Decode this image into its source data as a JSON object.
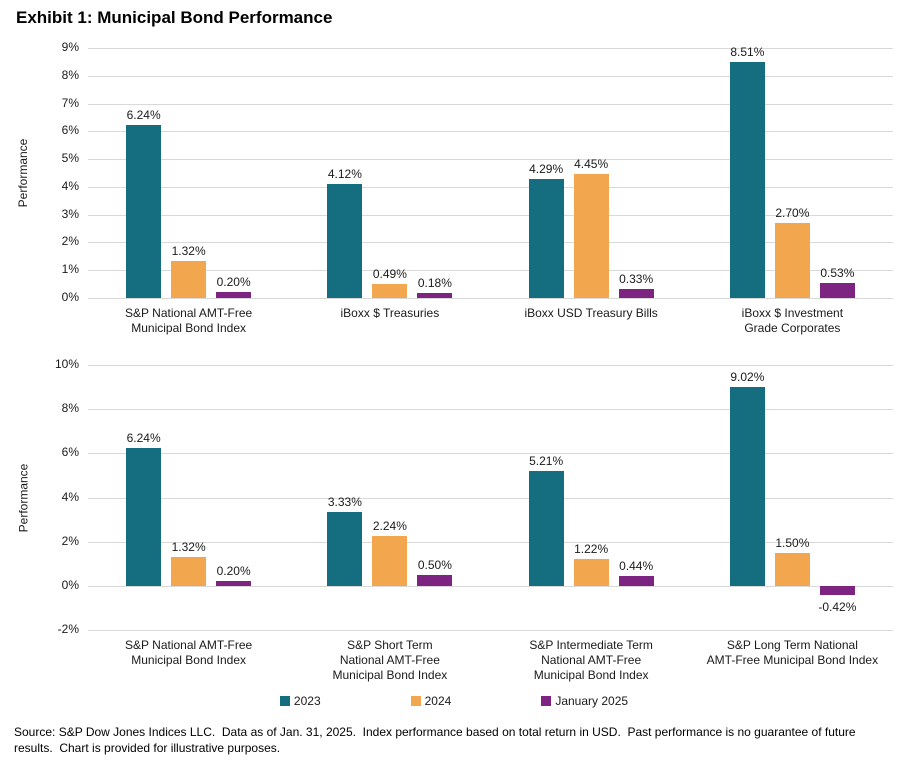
{
  "title": "Exhibit 1: Municipal Bond Performance",
  "legend": [
    {
      "label": "2023",
      "color": "#156e80"
    },
    {
      "label": "2024",
      "color": "#f2a74f"
    },
    {
      "label": "January 2025",
      "color": "#7d2382"
    }
  ],
  "footer": "Source: S&P Dow Jones Indices LLC.  Data as of Jan. 31, 2025.  Index performance based on total return in USD.  Past performance is no guarantee of future results.  Chart is provided for illustrative purposes.",
  "chart_data": [
    {
      "type": "bar",
      "title": "",
      "ylabel": "Performance",
      "ylim": [
        0,
        9
      ],
      "ytick_step": 1,
      "ytick_suffix": "%",
      "grid": true,
      "legend_position": "bottom",
      "value_labels": true,
      "categories": [
        "S&P National AMT-Free\nMunicipal Bond Index",
        "iBoxx $ Treasuries",
        "iBoxx USD Treasury Bills",
        "iBoxx $ Investment\nGrade Corporates"
      ],
      "series": [
        {
          "name": "2023",
          "color": "#156e80",
          "values": [
            6.24,
            4.12,
            4.29,
            8.51
          ]
        },
        {
          "name": "2024",
          "color": "#f2a74f",
          "values": [
            1.32,
            0.49,
            4.45,
            2.7
          ]
        },
        {
          "name": "January 2025",
          "color": "#7d2382",
          "values": [
            0.2,
            0.18,
            0.33,
            0.53
          ]
        }
      ]
    },
    {
      "type": "bar",
      "title": "",
      "ylabel": "Performance",
      "ylim": [
        -2,
        10
      ],
      "ytick_step": 2,
      "ytick_suffix": "%",
      "grid": true,
      "legend_position": "bottom",
      "value_labels": true,
      "categories": [
        "S&P National AMT-Free\nMunicipal Bond Index",
        "S&P Short Term\nNational AMT-Free\nMunicipal Bond Index",
        "S&P Intermediate Term\nNational AMT-Free\nMunicipal Bond Index",
        "S&P Long Term National\nAMT-Free Municipal Bond Index"
      ],
      "series": [
        {
          "name": "2023",
          "color": "#156e80",
          "values": [
            6.24,
            3.33,
            5.21,
            9.02
          ]
        },
        {
          "name": "2024",
          "color": "#f2a74f",
          "values": [
            1.32,
            2.24,
            1.22,
            1.5
          ]
        },
        {
          "name": "January 2025",
          "color": "#7d2382",
          "values": [
            0.2,
            0.5,
            0.44,
            -0.42
          ]
        }
      ]
    }
  ]
}
